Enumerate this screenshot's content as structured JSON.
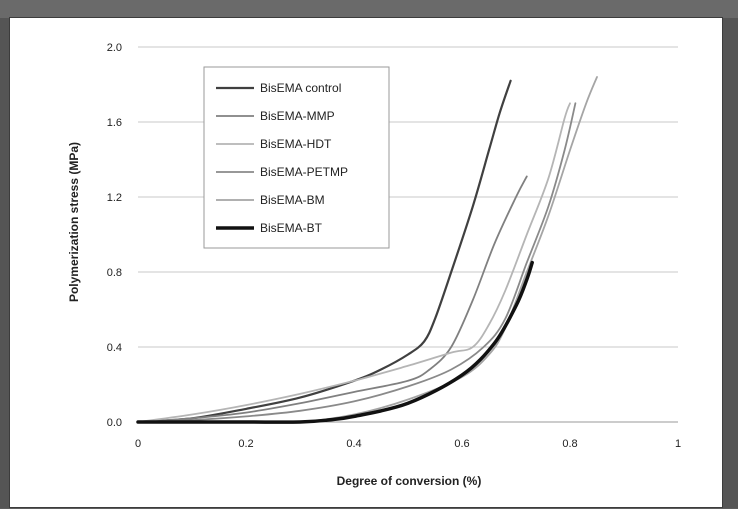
{
  "chart_data": {
    "type": "line",
    "title": "",
    "xlabel": "Degree of conversion (%)",
    "ylabel": "Polymerization stress (MPa)",
    "xlim": [
      0,
      1
    ],
    "ylim": [
      0,
      2.0
    ],
    "x_ticks": [
      "0",
      "0.2",
      "0.4",
      "0.6",
      "0.8",
      "1"
    ],
    "y_ticks": [
      "0.0",
      "0.4",
      "0.8",
      "1.2",
      "1.6",
      "2.0"
    ],
    "grid": "horizontal",
    "legend_position": "top-left",
    "series": [
      {
        "name": "BisEMA control",
        "color": "#404040",
        "width": 2.2,
        "points": [
          [
            0,
            0
          ],
          [
            0.1,
            0.02
          ],
          [
            0.2,
            0.07
          ],
          [
            0.3,
            0.13
          ],
          [
            0.4,
            0.22
          ],
          [
            0.45,
            0.28
          ],
          [
            0.5,
            0.36
          ],
          [
            0.53,
            0.43
          ],
          [
            0.55,
            0.55
          ],
          [
            0.58,
            0.8
          ],
          [
            0.62,
            1.15
          ],
          [
            0.65,
            1.45
          ],
          [
            0.67,
            1.65
          ],
          [
            0.69,
            1.82
          ]
        ]
      },
      {
        "name": "BisEMA-MMP",
        "color": "#808080",
        "width": 1.8,
        "points": [
          [
            0,
            0
          ],
          [
            0.1,
            0.02
          ],
          [
            0.2,
            0.05
          ],
          [
            0.3,
            0.1
          ],
          [
            0.4,
            0.16
          ],
          [
            0.5,
            0.22
          ],
          [
            0.54,
            0.28
          ],
          [
            0.58,
            0.4
          ],
          [
            0.62,
            0.65
          ],
          [
            0.66,
            0.95
          ],
          [
            0.7,
            1.2
          ],
          [
            0.72,
            1.31
          ]
        ]
      },
      {
        "name": "BisEMA-HDT",
        "color": "#b5b5b5",
        "width": 1.8,
        "points": [
          [
            0,
            0
          ],
          [
            0.1,
            0.04
          ],
          [
            0.2,
            0.09
          ],
          [
            0.3,
            0.15
          ],
          [
            0.4,
            0.22
          ],
          [
            0.5,
            0.3
          ],
          [
            0.58,
            0.37
          ],
          [
            0.62,
            0.4
          ],
          [
            0.65,
            0.52
          ],
          [
            0.68,
            0.7
          ],
          [
            0.72,
            1.0
          ],
          [
            0.76,
            1.3
          ],
          [
            0.79,
            1.62
          ],
          [
            0.8,
            1.7
          ]
        ]
      },
      {
        "name": "BisEMA-PETMP",
        "color": "#8a8a8a",
        "width": 1.8,
        "points": [
          [
            0,
            0
          ],
          [
            0.1,
            0.01
          ],
          [
            0.2,
            0.03
          ],
          [
            0.3,
            0.06
          ],
          [
            0.4,
            0.11
          ],
          [
            0.5,
            0.19
          ],
          [
            0.58,
            0.28
          ],
          [
            0.64,
            0.4
          ],
          [
            0.68,
            0.55
          ],
          [
            0.72,
            0.85
          ],
          [
            0.76,
            1.15
          ],
          [
            0.79,
            1.45
          ],
          [
            0.81,
            1.7
          ]
        ]
      },
      {
        "name": "BisEMA-BM",
        "color": "#a5a5a5",
        "width": 1.8,
        "points": [
          [
            0,
            0
          ],
          [
            0.1,
            0.0
          ],
          [
            0.2,
            0.0
          ],
          [
            0.3,
            0.0
          ],
          [
            0.4,
            0.04
          ],
          [
            0.5,
            0.12
          ],
          [
            0.6,
            0.24
          ],
          [
            0.65,
            0.36
          ],
          [
            0.68,
            0.5
          ],
          [
            0.72,
            0.8
          ],
          [
            0.76,
            1.1
          ],
          [
            0.8,
            1.45
          ],
          [
            0.83,
            1.7
          ],
          [
            0.85,
            1.84
          ]
        ]
      },
      {
        "name": "BisEMA-BT",
        "color": "#111111",
        "width": 3.5,
        "points": [
          [
            0,
            0
          ],
          [
            0.1,
            0.0
          ],
          [
            0.2,
            0.0
          ],
          [
            0.3,
            0.0
          ],
          [
            0.35,
            0.01
          ],
          [
            0.4,
            0.03
          ],
          [
            0.5,
            0.1
          ],
          [
            0.6,
            0.25
          ],
          [
            0.66,
            0.42
          ],
          [
            0.7,
            0.62
          ],
          [
            0.72,
            0.76
          ],
          [
            0.73,
            0.85
          ]
        ]
      }
    ]
  }
}
